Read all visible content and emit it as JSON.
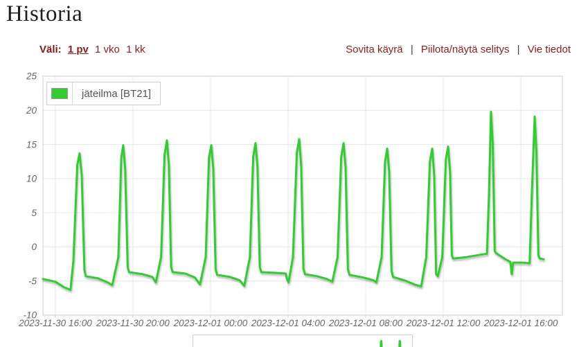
{
  "page": {
    "title": "Historia"
  },
  "controls": {
    "interval_label": "Väli:",
    "intervals": [
      {
        "label": "1 pv",
        "selected": true
      },
      {
        "label": "1 vko",
        "selected": false
      },
      {
        "label": "1 kk",
        "selected": false
      }
    ],
    "actions": [
      {
        "label": "Sovita käyrä"
      },
      {
        "label": "Piilota/näytä selitys"
      },
      {
        "label": "Vie tiedot"
      }
    ],
    "separator": "|"
  },
  "legend": {
    "series_label": "jäteilma [BT21]",
    "swatch_color": "#33cc33"
  },
  "colors": {
    "line": "#33cc33",
    "grid": "#e6e6e6",
    "plot_border": "#cccccc",
    "axis_text": "#666666",
    "link": "#8a1f1f",
    "separator": "#3b3b6e"
  },
  "chart_data": {
    "type": "line",
    "title": "Historia",
    "legend_position": "top-left",
    "grid": true,
    "series": [
      {
        "name": "jäteilma [BT21]",
        "color": "#33cc33",
        "x_unit": "hours since 2023-11-30 00:00",
        "y_unit": "°C",
        "points": [
          [
            15.36,
            -4.7
          ],
          [
            16.0,
            -5.1
          ],
          [
            16.45,
            -5.9
          ],
          [
            16.78,
            -6.3
          ],
          [
            16.93,
            -2.0
          ],
          [
            17.13,
            12.0
          ],
          [
            17.25,
            13.7
          ],
          [
            17.36,
            10.5
          ],
          [
            17.5,
            -3.4
          ],
          [
            17.57,
            -4.3
          ],
          [
            18.2,
            -4.6
          ],
          [
            18.7,
            -5.2
          ],
          [
            18.93,
            -5.6
          ],
          [
            19.25,
            -1.5
          ],
          [
            19.4,
            13.0
          ],
          [
            19.5,
            14.9
          ],
          [
            19.6,
            11.5
          ],
          [
            19.73,
            -3.0
          ],
          [
            19.8,
            -3.7
          ],
          [
            20.5,
            -4.0
          ],
          [
            21.0,
            -4.4
          ],
          [
            21.18,
            -5.2
          ],
          [
            21.45,
            -1.5
          ],
          [
            21.63,
            13.5
          ],
          [
            21.75,
            15.6
          ],
          [
            21.85,
            12.0
          ],
          [
            21.97,
            -3.0
          ],
          [
            22.05,
            -3.7
          ],
          [
            22.7,
            -3.9
          ],
          [
            23.2,
            -4.5
          ],
          [
            23.46,
            -5.5
          ],
          [
            23.75,
            -1.5
          ],
          [
            23.92,
            13.0
          ],
          [
            24.04,
            14.9
          ],
          [
            24.14,
            11.5
          ],
          [
            24.26,
            -3.2
          ],
          [
            24.34,
            -4.1
          ],
          [
            25.0,
            -4.4
          ],
          [
            25.5,
            -4.9
          ],
          [
            25.74,
            -5.7
          ],
          [
            26.03,
            -1.5
          ],
          [
            26.2,
            13.2
          ],
          [
            26.32,
            15.2
          ],
          [
            26.42,
            11.8
          ],
          [
            26.54,
            -3.0
          ],
          [
            26.62,
            -3.7
          ],
          [
            27.3,
            -3.8
          ],
          [
            27.88,
            -3.9
          ],
          [
            27.94,
            -4.7
          ],
          [
            28.02,
            -5.2
          ],
          [
            28.25,
            -1.5
          ],
          [
            28.45,
            13.8
          ],
          [
            28.57,
            15.8
          ],
          [
            28.67,
            12.0
          ],
          [
            28.79,
            -3.2
          ],
          [
            28.87,
            -4.0
          ],
          [
            29.5,
            -4.3
          ],
          [
            30.0,
            -4.7
          ],
          [
            30.28,
            -5.1
          ],
          [
            30.55,
            -1.5
          ],
          [
            30.74,
            13.2
          ],
          [
            30.86,
            15.2
          ],
          [
            30.96,
            11.8
          ],
          [
            31.08,
            -3.2
          ],
          [
            31.16,
            -4.1
          ],
          [
            31.9,
            -4.5
          ],
          [
            32.4,
            -4.9
          ],
          [
            32.55,
            -5.2
          ],
          [
            32.82,
            -1.5
          ],
          [
            33.0,
            12.5
          ],
          [
            33.11,
            14.4
          ],
          [
            33.21,
            11.0
          ],
          [
            33.33,
            -3.5
          ],
          [
            33.41,
            -4.4
          ],
          [
            34.1,
            -5.0
          ],
          [
            34.6,
            -5.6
          ],
          [
            34.86,
            -5.8
          ],
          [
            35.12,
            -1.5
          ],
          [
            35.31,
            12.5
          ],
          [
            35.43,
            14.4
          ],
          [
            35.53,
            10.5
          ],
          [
            35.63,
            -4.0
          ],
          [
            35.72,
            -4.3
          ],
          [
            35.95,
            -1.5
          ],
          [
            36.13,
            12.8
          ],
          [
            36.25,
            14.7
          ],
          [
            36.35,
            11.0
          ],
          [
            36.44,
            -1.2
          ],
          [
            36.5,
            -1.7
          ],
          [
            37.2,
            -1.5
          ],
          [
            38.0,
            -1.1
          ],
          [
            38.25,
            -1.0
          ],
          [
            38.36,
            8.0
          ],
          [
            38.46,
            19.8
          ],
          [
            38.55,
            15.0
          ],
          [
            38.65,
            -0.6
          ],
          [
            38.72,
            -0.9
          ],
          [
            39.2,
            -1.8
          ],
          [
            39.46,
            -2.2
          ],
          [
            39.53,
            -4.0
          ],
          [
            39.6,
            -2.3
          ],
          [
            40.1,
            -2.3
          ],
          [
            40.45,
            -2.4
          ],
          [
            40.57,
            8.0
          ],
          [
            40.71,
            19.1
          ],
          [
            40.8,
            14.0
          ],
          [
            40.9,
            -1.2
          ],
          [
            40.97,
            -1.7
          ],
          [
            41.18,
            -1.8
          ]
        ]
      }
    ],
    "x_axis": {
      "min": 15.36,
      "max": 42.14,
      "ticks": [
        {
          "t": 16,
          "label": "2023-11-30 16:00"
        },
        {
          "t": 20,
          "label": "2023-11-30 20:00"
        },
        {
          "t": 24,
          "label": "2023-12-01 00:00"
        },
        {
          "t": 28,
          "label": "2023-12-01 04:00"
        },
        {
          "t": 32,
          "label": "2023-12-01 08:00"
        },
        {
          "t": 36,
          "label": "2023-12-01 12:00"
        },
        {
          "t": 40,
          "label": "2023-12-01 16:00"
        }
      ]
    },
    "y_axis": {
      "min": -10,
      "max": 25,
      "tick_step": 5,
      "ticks": [
        25,
        20,
        15,
        10,
        5,
        0,
        -5,
        -10
      ]
    }
  },
  "mini_chart": {
    "spike_positions": [
      0.859,
      0.944
    ],
    "spike_color": "#33cc33"
  }
}
